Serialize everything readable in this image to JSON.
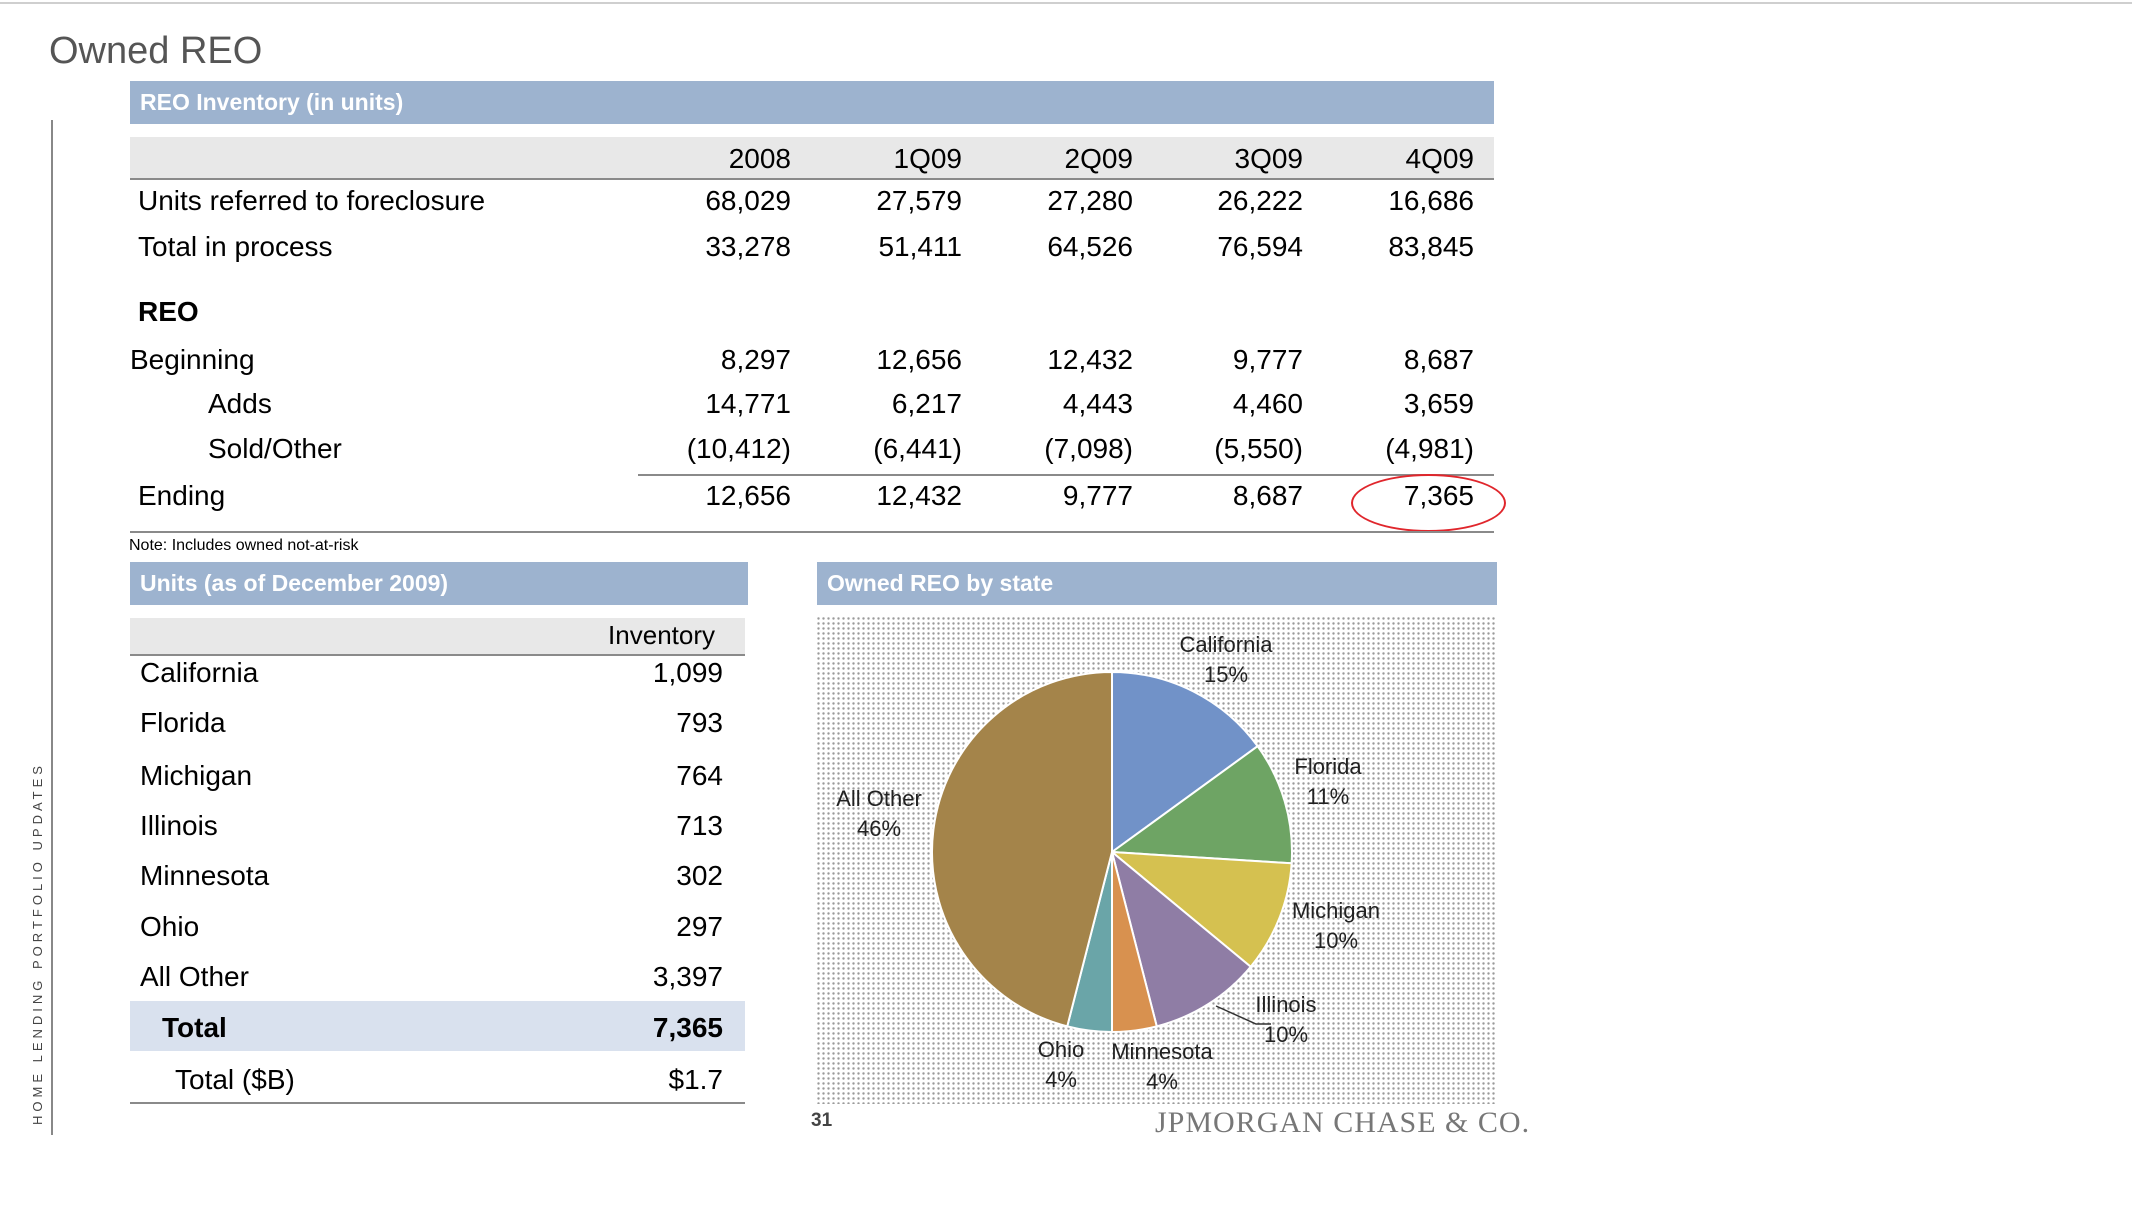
{
  "page_title": "Owned REO",
  "side_label": "HOME LENDING PORTFOLIO UPDATES",
  "inventory_section": {
    "header": "REO Inventory (in units)",
    "columns": [
      "2008",
      "1Q09",
      "2Q09",
      "3Q09",
      "4Q09"
    ],
    "rows": [
      {
        "label": "Units referred to foreclosure",
        "values": [
          "68,029",
          "27,579",
          "27,280",
          "26,222",
          "16,686"
        ]
      },
      {
        "label": "Total in process",
        "values": [
          "33,278",
          "51,411",
          "64,526",
          "76,594",
          "83,845"
        ]
      }
    ],
    "reo_label": "REO",
    "reo_rows": [
      {
        "label": "Beginning",
        "values": [
          "8,297",
          "12,656",
          "12,432",
          "9,777",
          "8,687"
        ]
      },
      {
        "label": "Adds",
        "values": [
          "14,771",
          "6,217",
          "4,443",
          "4,460",
          "3,659"
        ]
      },
      {
        "label": "Sold/Other",
        "values": [
          "(10,412)",
          "(6,441)",
          "(7,098)",
          "(5,550)",
          "(4,981)"
        ]
      },
      {
        "label": "Ending",
        "values": [
          "12,656",
          "12,432",
          "9,777",
          "8,687",
          "7,365"
        ]
      }
    ],
    "note": "Note: Includes owned not-at-risk"
  },
  "units_section": {
    "header": "Units (as of December 2009)",
    "column": "Inventory",
    "rows": [
      {
        "label": "California",
        "value": "1,099"
      },
      {
        "label": "Florida",
        "value": "793"
      },
      {
        "label": "Michigan",
        "value": "764"
      },
      {
        "label": "Illinois",
        "value": "713"
      },
      {
        "label": "Minnesota",
        "value": "302"
      },
      {
        "label": "Ohio",
        "value": "297"
      },
      {
        "label": "All Other",
        "value": "3,397"
      }
    ],
    "total": {
      "label": "Total",
      "value": "7,365"
    },
    "total_b": {
      "label": "Total ($B)",
      "value": "$1.7"
    }
  },
  "chart_section": {
    "header": "Owned REO by state"
  },
  "chart_data": {
    "type": "pie",
    "title": "Owned REO by state",
    "slices": [
      {
        "name": "California",
        "value": 15,
        "label": "15%",
        "color": "#7192c8"
      },
      {
        "name": "Florida",
        "value": 11,
        "label": "11%",
        "color": "#6ea464"
      },
      {
        "name": "Michigan",
        "value": 10,
        "label": "10%",
        "color": "#d5c150"
      },
      {
        "name": "Illinois",
        "value": 10,
        "label": "10%",
        "color": "#8f7da5"
      },
      {
        "name": "Minnesota",
        "value": 4,
        "label": "4%",
        "color": "#d8914f"
      },
      {
        "name": "Ohio",
        "value": 4,
        "label": "4%",
        "color": "#6aa5a8"
      },
      {
        "name": "All Other",
        "value": 46,
        "label": "46%",
        "color": "#a4844a"
      }
    ]
  },
  "footer": {
    "page_number": "31",
    "logo_text": "JPMORGAN CHASE & CO."
  }
}
